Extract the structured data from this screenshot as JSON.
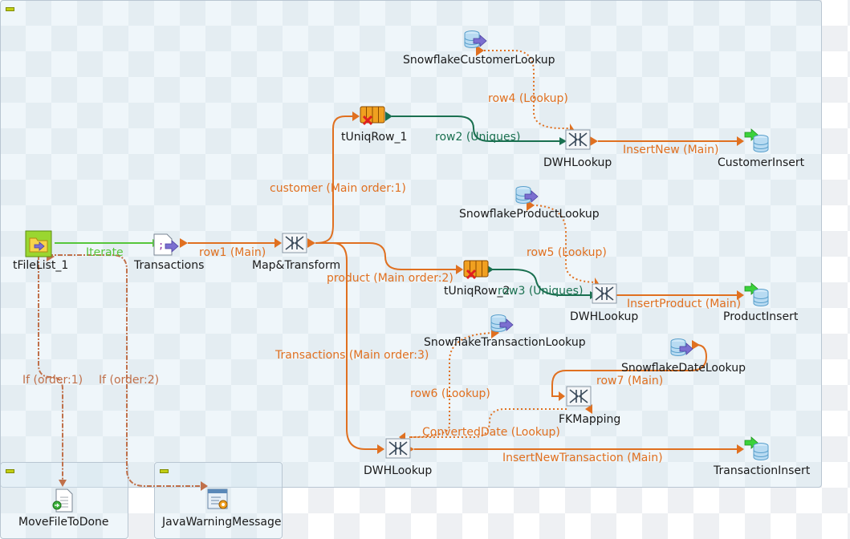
{
  "components": {
    "tfilelist": "tFileList_1",
    "transactions": "Transactions",
    "map_transform": "Map&Transform",
    "tuniqrow_1": "tUniqRow_1",
    "tuniqrow_2": "tUniqRow_2",
    "dwh_lookup_customer": "DWHLookup",
    "dwh_lookup_product": "DWHLookup",
    "dwh_lookup_transaction": "DWHLookup",
    "snowflake_customer_lookup": "SnowflakeCustomerLookup",
    "snowflake_product_lookup": "SnowflakeProductLookup",
    "snowflake_transaction_lookup": "SnowflakeTransactionLookup",
    "snowflake_date_lookup": "SnowflakeDateLookup",
    "fk_mapping": "FKMapping",
    "customer_insert": "CustomerInsert",
    "product_insert": "ProductInsert",
    "transaction_insert": "TransactionInsert",
    "move_file_to_done": "MoveFileToDone",
    "java_warning_message": "JavaWarningMessage"
  },
  "links": {
    "iterate": "Iterate",
    "row1": "row1 (Main)",
    "customer": "customer (Main order:1)",
    "product": "product (Main order:2)",
    "transactions": "Transactions (Main order:3)",
    "row2": "row2 (Uniques)",
    "row3": "row3 (Uniques)",
    "row4": "row4 (Lookup)",
    "row5": "row5 (Lookup)",
    "row6": "row6 (Lookup)",
    "row7": "row7 (Main)",
    "insert_new": "InsertNew (Main)",
    "insert_product": "InsertProduct (Main)",
    "insert_new_transaction": "InsertNewTransaction (Main)",
    "converted_date": "ConvertedDate (Lookup)",
    "if1": "If (order:1)",
    "if2": "If (order:2)"
  },
  "colors": {
    "main_link": "#e07020",
    "uniques_link": "#1a7050",
    "iterate_link": "#56c63b",
    "trigger_link": "#c0704a",
    "subjob_border": "#b9c6d2"
  }
}
